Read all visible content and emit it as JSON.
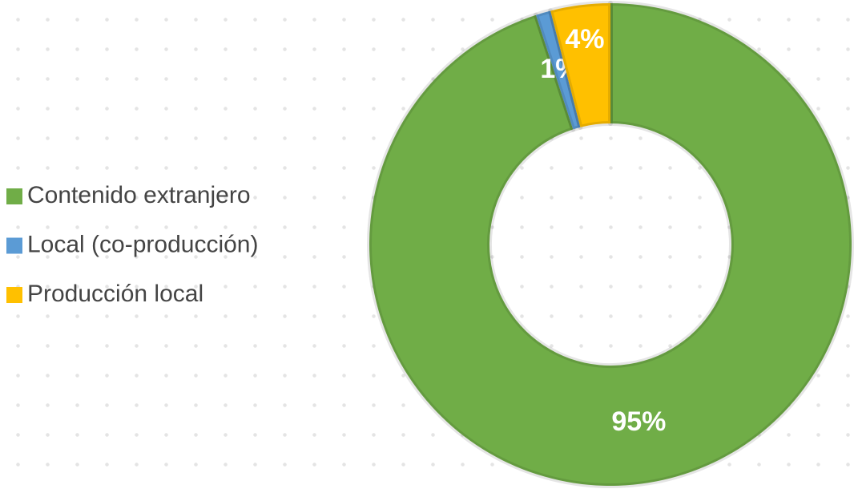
{
  "chart_data": {
    "type": "donut",
    "categories": [
      "Contenido extranjero",
      "Local (co-producción)",
      "Producción local"
    ],
    "values": [
      95,
      1,
      4
    ],
    "value_labels": [
      "95%",
      "1%",
      "4%"
    ],
    "colors": [
      "#70ad47",
      "#5b9bd5",
      "#ffc000"
    ]
  }
}
